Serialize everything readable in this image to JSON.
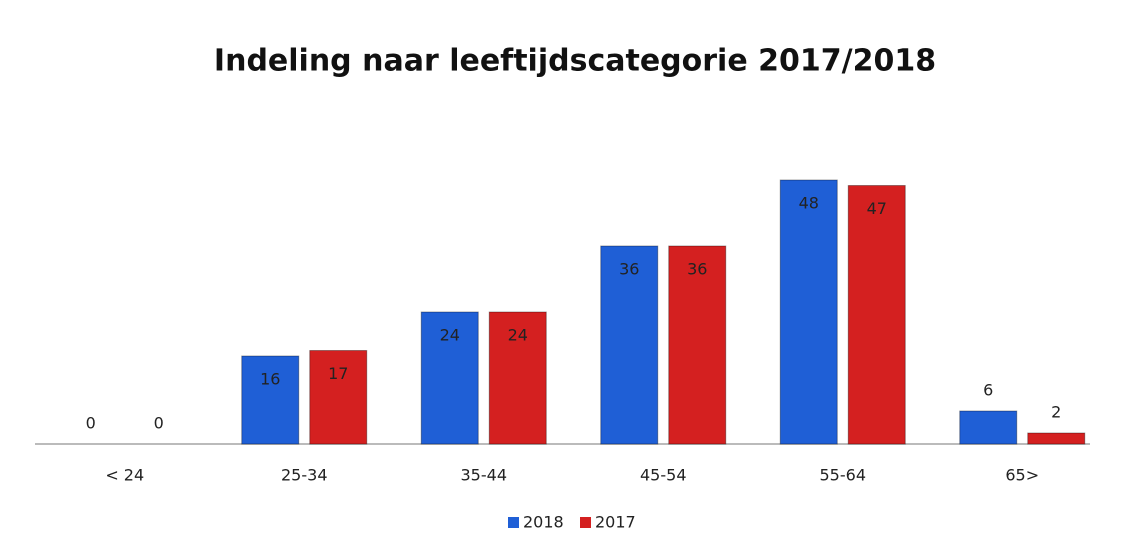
{
  "chart_data": {
    "type": "bar",
    "title": "Indeling naar leeftijdscategorie 2017/2018",
    "categories": [
      "< 24",
      "25-34",
      "35-44",
      "45-54",
      "55-64",
      "65>"
    ],
    "series": [
      {
        "name": "2018",
        "color": "#1f5fd6",
        "values": [
          0,
          16,
          24,
          36,
          48,
          6
        ]
      },
      {
        "name": "2017",
        "color": "#d42020",
        "values": [
          0,
          17,
          24,
          36,
          47,
          2
        ]
      }
    ],
    "legend": "bottom"
  }
}
